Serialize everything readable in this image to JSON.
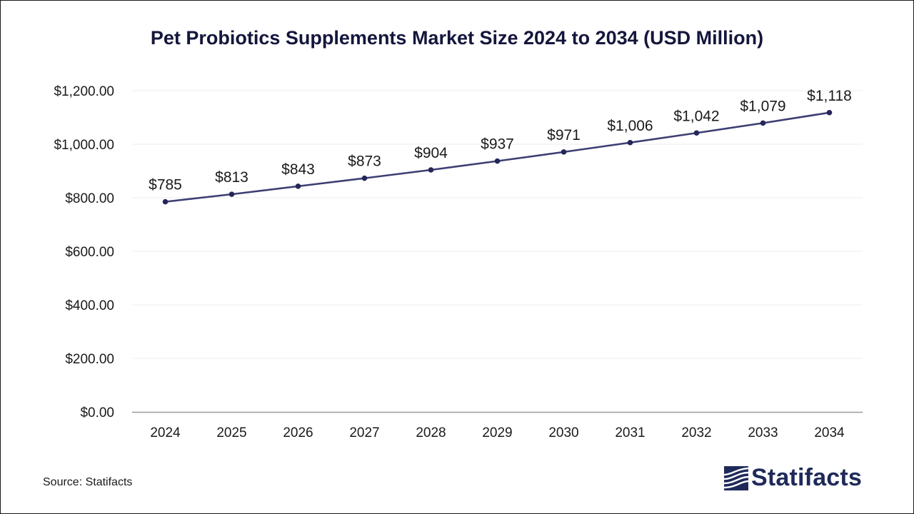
{
  "chart_data": {
    "type": "line",
    "title": "Pet Probiotics Supplements Market Size 2024 to 2034 (USD Million)",
    "categories": [
      "2024",
      "2025",
      "2026",
      "2027",
      "2028",
      "2029",
      "2030",
      "2031",
      "2032",
      "2033",
      "2034"
    ],
    "values": [
      785,
      813,
      843,
      873,
      904,
      937,
      971,
      1006,
      1042,
      1079,
      1118
    ],
    "data_labels": [
      "$785",
      "$813",
      "$843",
      "$873",
      "$904",
      "$937",
      "$971",
      "$1,006",
      "$1,042",
      "$1,079",
      "$1,118"
    ],
    "yticks": [
      0,
      200,
      400,
      600,
      800,
      1000,
      1200
    ],
    "ytick_labels": [
      "$0.00",
      "$200.00",
      "$400.00",
      "$600.00",
      "$800.00",
      "$1,000.00",
      "$1,200.00"
    ],
    "ylim": [
      0,
      1200
    ],
    "xlabel": "",
    "ylabel": "",
    "grid": true,
    "line_color": "#3d3f73",
    "marker_color": "#24265a"
  },
  "footer": {
    "source": "Source: Statifacts",
    "brand": "Statifacts",
    "brand_color": "#1f2a5a"
  }
}
